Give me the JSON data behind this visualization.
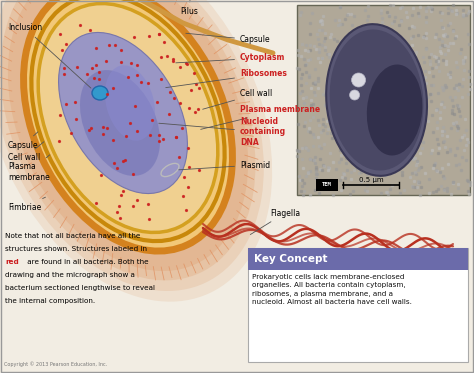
{
  "bg_color": "#f2ede3",
  "key_concept_title": "Key Concept",
  "key_concept_title_color": "#ffffff",
  "key_concept_bg": "#6b6baa",
  "key_concept_text": "Prokaryotic cells lack membrane-enclosed\norganelles. All bacteria contain cytoplasm,\nribosomes, a plasma membrane, and a\nnucleoid. Almost all bacteria have cell walls.",
  "key_concept_text_color": "#111111",
  "copyright": "Copyright © 2013 Pearson Education, Inc.",
  "tem_label": "TEM",
  "scale_label": "0.5 µm",
  "cell_outer_color": "#d4821e",
  "cell_wall_color": "#c8880a",
  "cell_membrane_color": "#d4a020",
  "cell_inner_color": "#f2c878",
  "cell_cytoplasm_color": "#f0d090",
  "cell_nucleus_color": "#8888cc",
  "cell_inclusion_color": "#3399cc",
  "ribosome_color": "#cc2020",
  "flagella_color": "#b83020",
  "fimbriae_color": "#e09060",
  "pilus_color": "#d09840",
  "capsule_color": "#dda070"
}
